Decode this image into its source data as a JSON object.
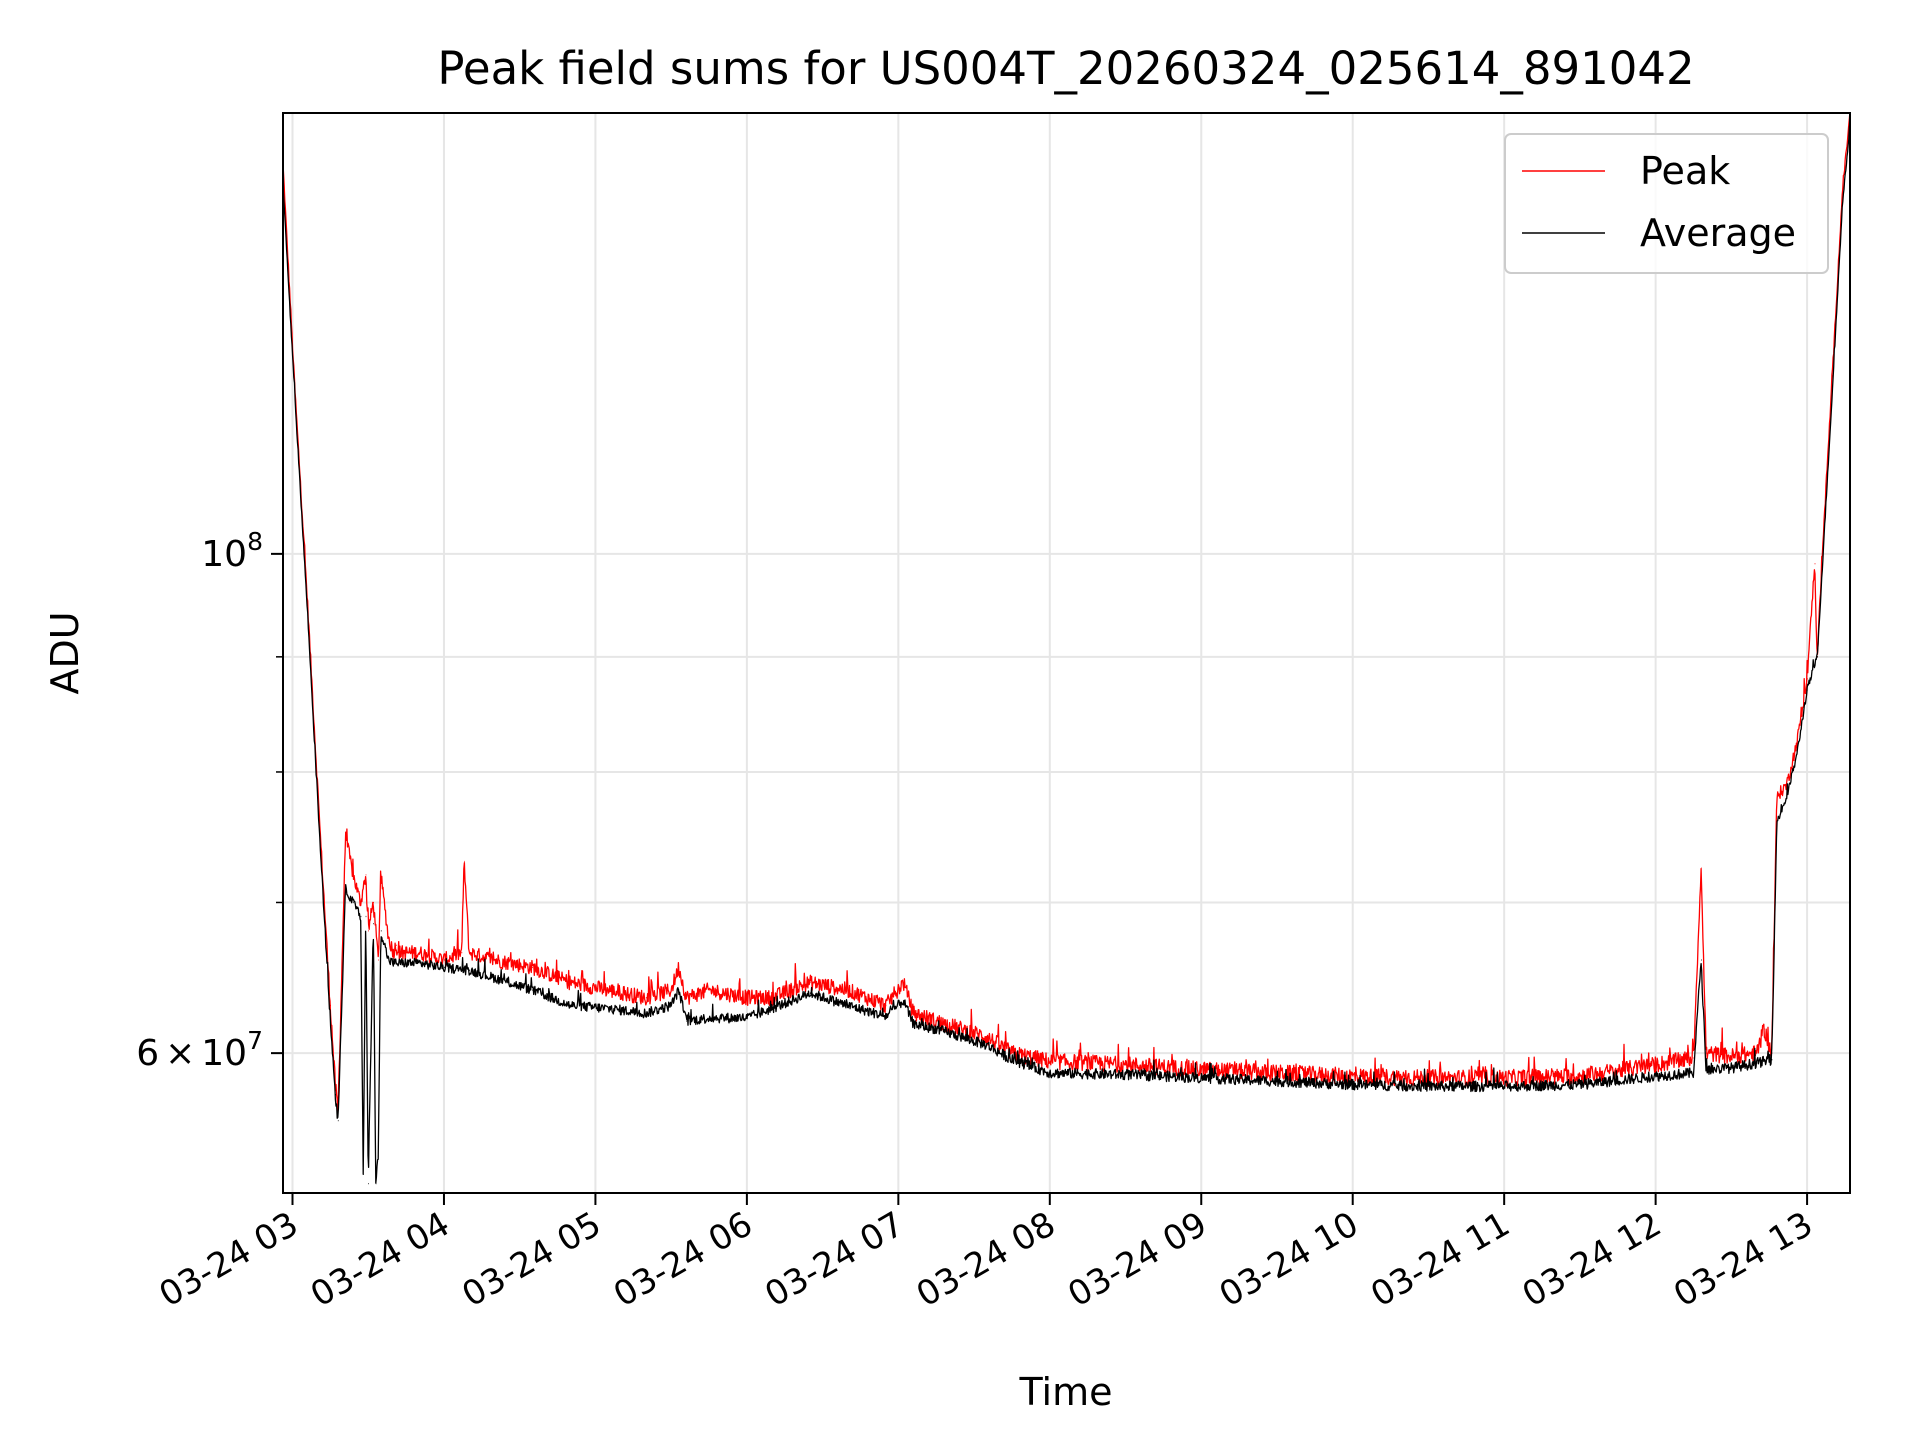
{
  "chart_data": {
    "type": "line",
    "title": "Peak field sums for US004T_20260324_025614_891042",
    "xlabel": "Time",
    "ylabel": "ADU",
    "x_axis": {
      "type": "datetime",
      "range": [
        "2026-03-24T02:56:14",
        "2026-03-24T13:17:00"
      ],
      "ticks": [
        {
          "t": "2026-03-24T03:00",
          "label": "03-24 03"
        },
        {
          "t": "2026-03-24T04:00",
          "label": "03-24 04"
        },
        {
          "t": "2026-03-24T05:00",
          "label": "03-24 05"
        },
        {
          "t": "2026-03-24T06:00",
          "label": "03-24 06"
        },
        {
          "t": "2026-03-24T07:00",
          "label": "03-24 07"
        },
        {
          "t": "2026-03-24T08:00",
          "label": "03-24 08"
        },
        {
          "t": "2026-03-24T09:00",
          "label": "03-24 09"
        },
        {
          "t": "2026-03-24T10:00",
          "label": "03-24 10"
        },
        {
          "t": "2026-03-24T11:00",
          "label": "03-24 11"
        },
        {
          "t": "2026-03-24T12:00",
          "label": "03-24 12"
        },
        {
          "t": "2026-03-24T13:00",
          "label": "03-24 13"
        }
      ]
    },
    "y_axis": {
      "scale": "log",
      "range": [
        52000000,
        157000000
      ],
      "major_ticks": [
        {
          "v": 60000000,
          "base": "6",
          "times": "×",
          "exp_base": "10",
          "exp": "7"
        },
        {
          "v": 100000000,
          "base": "",
          "times": "",
          "exp_base": "10",
          "exp": "8"
        }
      ],
      "minor_ticks": [
        70000000,
        80000000,
        90000000
      ]
    },
    "grid": true,
    "legend": {
      "position": "top-right",
      "entries": [
        "Peak",
        "Average"
      ]
    },
    "series": [
      {
        "name": "Peak",
        "color": "#ff0000",
        "x": [
          "2026-03-24T02:56:14",
          "2026-03-24T03:01",
          "2026-03-24T03:06",
          "2026-03-24T03:11",
          "2026-03-24T03:15",
          "2026-03-24T03:17",
          "2026-03-24T03:18",
          "2026-03-24T03:21",
          "2026-03-24T03:24",
          "2026-03-24T03:27",
          "2026-03-24T03:29",
          "2026-03-24T03:30",
          "2026-03-24T03:32",
          "2026-03-24T03:34",
          "2026-03-24T03:35",
          "2026-03-24T03:38",
          "2026-03-24T03:40",
          "2026-03-24T03:41",
          "2026-03-24T03:42",
          "2026-03-24T03:45",
          "2026-03-24T03:50",
          "2026-03-24T04:00",
          "2026-03-24T04:07",
          "2026-03-24T04:08",
          "2026-03-24T04:10",
          "2026-03-24T04:20",
          "2026-03-24T04:35",
          "2026-03-24T04:50",
          "2026-03-24T05:05",
          "2026-03-24T05:20",
          "2026-03-24T05:30",
          "2026-03-24T05:33",
          "2026-03-24T05:36",
          "2026-03-24T05:45",
          "2026-03-24T06:00",
          "2026-03-24T06:10",
          "2026-03-24T06:25",
          "2026-03-24T06:40",
          "2026-03-24T06:55",
          "2026-03-24T07:02",
          "2026-03-24T07:06",
          "2026-03-24T07:15",
          "2026-03-24T07:25",
          "2026-03-24T07:35",
          "2026-03-24T07:45",
          "2026-03-24T08:00",
          "2026-03-24T08:30",
          "2026-03-24T09:00",
          "2026-03-24T09:30",
          "2026-03-24T10:00",
          "2026-03-24T10:30",
          "2026-03-24T11:00",
          "2026-03-24T11:30",
          "2026-03-24T12:00",
          "2026-03-24T12:15",
          "2026-03-24T12:18",
          "2026-03-24T12:20",
          "2026-03-24T12:30",
          "2026-03-24T12:40",
          "2026-03-24T12:43",
          "2026-03-24T12:46",
          "2026-03-24T12:48",
          "2026-03-24T12:52",
          "2026-03-24T12:56",
          "2026-03-24T13:00",
          "2026-03-24T13:03",
          "2026-03-24T13:04",
          "2026-03-24T13:06",
          "2026-03-24T13:10",
          "2026-03-24T13:14",
          "2026-03-24T13:17"
        ],
        "y": [
          149000000,
          118000000,
          95000000,
          75000000,
          63000000,
          58000000,
          56500000,
          75000000,
          72000000,
          70000000,
          72000000,
          68000000,
          70000000,
          66000000,
          72000000,
          67500000,
          66500000,
          67000000,
          66500000,
          66500000,
          66500000,
          66000000,
          66500000,
          73000000,
          66500000,
          66000000,
          65500000,
          64500000,
          64000000,
          63500000,
          64000000,
          65500000,
          63500000,
          64000000,
          63500000,
          63500000,
          64500000,
          64000000,
          63000000,
          64500000,
          62500000,
          62000000,
          61500000,
          61000000,
          60000000,
          59500000,
          59300000,
          59000000,
          58800000,
          58600000,
          58500000,
          58500000,
          58600000,
          59300000,
          59700000,
          72500000,
          60000000,
          59800000,
          60000000,
          61500000,
          60000000,
          78000000,
          79000000,
          82500000,
          88000000,
          99000000,
          90000000,
          100000000,
          120000000,
          145000000,
          157000000
        ],
        "noise": 500000
      },
      {
        "name": "Average",
        "color": "#000000",
        "x": [
          "2026-03-24T02:56:14",
          "2026-03-24T03:01",
          "2026-03-24T03:06",
          "2026-03-24T03:11",
          "2026-03-24T03:15",
          "2026-03-24T03:17",
          "2026-03-24T03:18",
          "2026-03-24T03:21",
          "2026-03-24T03:24",
          "2026-03-24T03:27",
          "2026-03-24T03:28",
          "2026-03-24T03:29",
          "2026-03-24T03:30",
          "2026-03-24T03:32",
          "2026-03-24T03:33",
          "2026-03-24T03:34",
          "2026-03-24T03:35",
          "2026-03-24T03:38",
          "2026-03-24T03:40",
          "2026-03-24T03:45",
          "2026-03-24T03:50",
          "2026-03-24T04:00",
          "2026-03-24T04:10",
          "2026-03-24T04:20",
          "2026-03-24T04:35",
          "2026-03-24T04:50",
          "2026-03-24T05:05",
          "2026-03-24T05:20",
          "2026-03-24T05:30",
          "2026-03-24T05:33",
          "2026-03-24T05:36",
          "2026-03-24T05:45",
          "2026-03-24T06:00",
          "2026-03-24T06:10",
          "2026-03-24T06:25",
          "2026-03-24T06:40",
          "2026-03-24T06:55",
          "2026-03-24T07:02",
          "2026-03-24T07:06",
          "2026-03-24T07:15",
          "2026-03-24T07:25",
          "2026-03-24T07:35",
          "2026-03-24T07:45",
          "2026-03-24T08:00",
          "2026-03-24T08:30",
          "2026-03-24T09:00",
          "2026-03-24T09:30",
          "2026-03-24T10:00",
          "2026-03-24T10:30",
          "2026-03-24T11:00",
          "2026-03-24T11:30",
          "2026-03-24T12:00",
          "2026-03-24T12:15",
          "2026-03-24T12:18",
          "2026-03-24T12:20",
          "2026-03-24T12:30",
          "2026-03-24T12:40",
          "2026-03-24T12:46",
          "2026-03-24T12:48",
          "2026-03-24T12:52",
          "2026-03-24T12:56",
          "2026-03-24T13:00",
          "2026-03-24T13:04",
          "2026-03-24T13:10",
          "2026-03-24T13:14",
          "2026-03-24T13:17"
        ],
        "y": [
          146000000,
          117000000,
          94000000,
          74000000,
          62000000,
          57500000,
          56000000,
          71000000,
          70000000,
          69000000,
          53000000,
          69000000,
          52500000,
          68500000,
          52500000,
          54000000,
          68000000,
          66000000,
          65800000,
          65800000,
          65800000,
          65500000,
          65300000,
          64800000,
          64000000,
          63000000,
          62800000,
          62500000,
          63000000,
          64000000,
          62000000,
          62200000,
          62200000,
          62800000,
          63800000,
          63000000,
          62300000,
          63300000,
          61800000,
          61500000,
          61000000,
          60500000,
          59600000,
          58800000,
          58700000,
          58500000,
          58300000,
          58100000,
          58000000,
          58000000,
          58100000,
          58600000,
          58800000,
          66000000,
          59000000,
          59100000,
          59400000,
          59600000,
          76000000,
          78000000,
          81500000,
          87000000,
          90000000,
          118000000,
          143000000,
          155000000
        ],
        "noise": 320000
      }
    ]
  }
}
